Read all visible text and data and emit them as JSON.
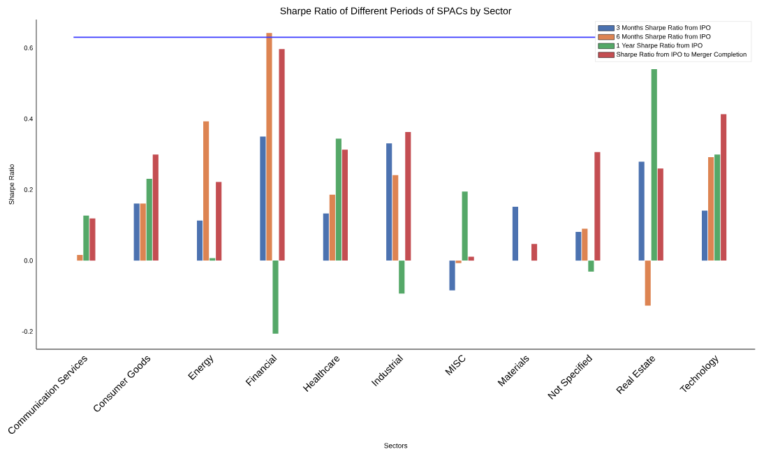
{
  "chart_data": {
    "type": "bar",
    "title": "Sharpe Ratio of Different Periods of SPACs by Sector",
    "xlabel": "Sectors",
    "ylabel": "Sharpe Ratio",
    "categories": [
      "Communication Services",
      "Consumer Goods",
      "Energy",
      "Financial",
      "Healthcare",
      "Industrial",
      "MISC",
      "Materials",
      "Not Specified",
      "Real Estate",
      "Technology"
    ],
    "series": [
      {
        "name": "3 Months Sharpe Ratio from IPO",
        "color": "#4c72b0",
        "values": [
          null,
          0.161,
          0.113,
          0.35,
          0.133,
          0.331,
          -0.084,
          0.152,
          0.081,
          0.279,
          0.141
        ]
      },
      {
        "name": "6 Months Sharpe Ratio from IPO",
        "color": "#dd8452",
        "values": [
          0.016,
          0.161,
          0.393,
          0.642,
          0.186,
          0.241,
          -0.007,
          null,
          0.09,
          -0.127,
          0.292
        ]
      },
      {
        "name": "1 Year Sharpe Ratio from IPO",
        "color": "#55a868",
        "values": [
          0.127,
          0.231,
          0.007,
          -0.206,
          0.344,
          -0.093,
          0.195,
          null,
          -0.031,
          0.54,
          0.299
        ]
      },
      {
        "name": "Sharpe Ratio from IPO to Merger Completion",
        "color": "#c44e52",
        "values": [
          0.119,
          0.299,
          0.222,
          0.597,
          0.313,
          0.363,
          0.011,
          0.047,
          0.306,
          0.26,
          0.413
        ]
      }
    ],
    "ylim": [
      -0.25,
      0.68
    ],
    "yticks": [
      {
        "value": -0.2,
        "label": "-0.2"
      },
      {
        "value": 0.0,
        "label": "0.0"
      },
      {
        "value": 0.2,
        "label": "0.2"
      },
      {
        "value": 0.4,
        "label": "0.4"
      },
      {
        "value": 0.6,
        "label": "0.6"
      }
    ],
    "ref_lines": [
      {
        "axis": "y",
        "value": 0.63,
        "color": "#3b3bff"
      }
    ],
    "legend": "top right",
    "grid": false
  }
}
